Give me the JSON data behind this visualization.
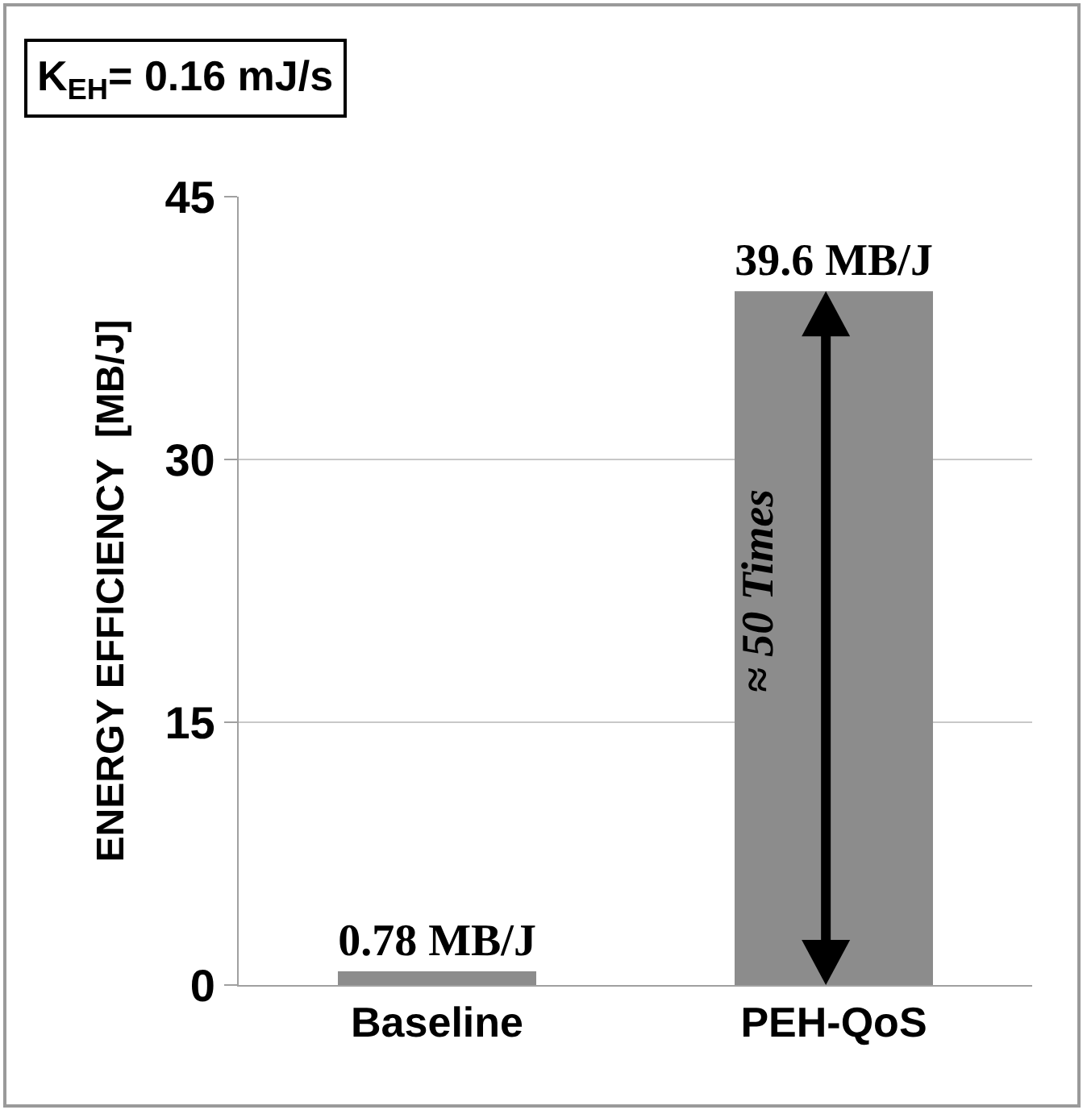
{
  "chart_data": {
    "type": "bar",
    "ylabel": "ENERGY EFFICIENCY  [MB/J]",
    "categories": [
      "Baseline",
      "PEH-QoS"
    ],
    "values": [
      0.78,
      39.6
    ],
    "value_labels": [
      "0.78 MB/J",
      "39.6 MB/J"
    ],
    "color": "#8c8c8c",
    "ylim": [
      0,
      45
    ],
    "yticks": [
      0,
      15,
      30,
      45
    ],
    "grid": "y",
    "annotations": [
      "K$_{EH}$= 0.16 mJ/s",
      "≈ 50 Times"
    ]
  }
}
